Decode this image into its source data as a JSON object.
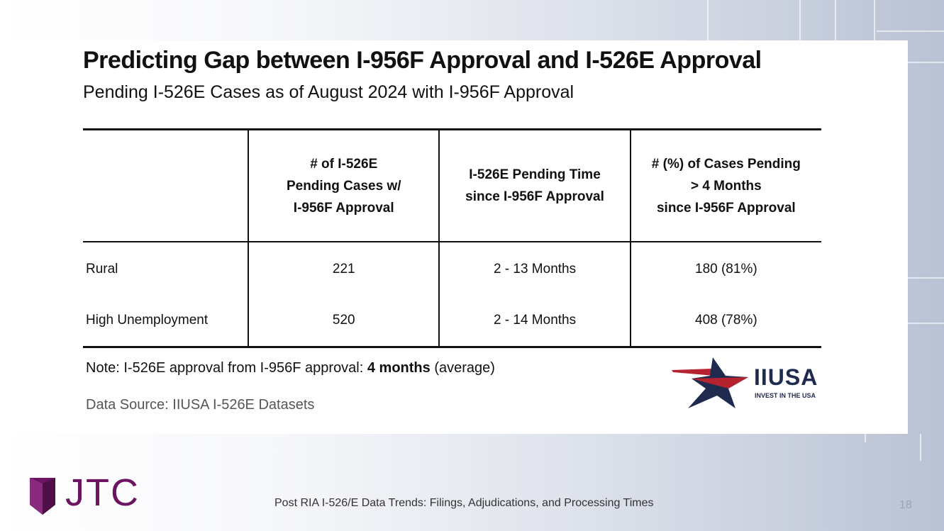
{
  "slide": {
    "title": "Predicting Gap between I-956F Approval and I-526E Approval",
    "subtitle": "Pending I-526E Cases as of August 2024 with I-956F Approval"
  },
  "table": {
    "headers": [
      {
        "lines": [
          ""
        ]
      },
      {
        "lines": [
          "# of I-526E",
          "Pending Cases w/",
          "I-956F Approval"
        ]
      },
      {
        "lines": [
          "I-526E Pending Time",
          "since I-956F Approval"
        ]
      },
      {
        "lines": [
          "# (%) of Cases Pending",
          "> 4 Months",
          "since I-956F Approval"
        ]
      }
    ],
    "rows": [
      [
        "Rural",
        "221",
        "2 - 13 Months",
        "180 (81%)"
      ],
      [
        "High Unemployment",
        "520",
        "2 - 14 Months",
        "408 (78%)"
      ]
    ]
  },
  "note": {
    "prefix": "Note: I-526E approval from I-956F approval: ",
    "bold": "4 months",
    "suffix": " (average)"
  },
  "source": "Data Source: IIUSA I-526E Datasets",
  "iiusa_logo": {
    "name": "IIUSA",
    "tagline": "INVEST IN THE USA",
    "colors": {
      "red": "#b5232f",
      "navy": "#1f2a4f"
    }
  },
  "jtc_logo": {
    "name": "JTC",
    "color": "#6b1461"
  },
  "footer": {
    "text": "Post RIA I-526/E Data Trends: Filings, Adjudications, and Processing Times",
    "page_number": "18"
  }
}
